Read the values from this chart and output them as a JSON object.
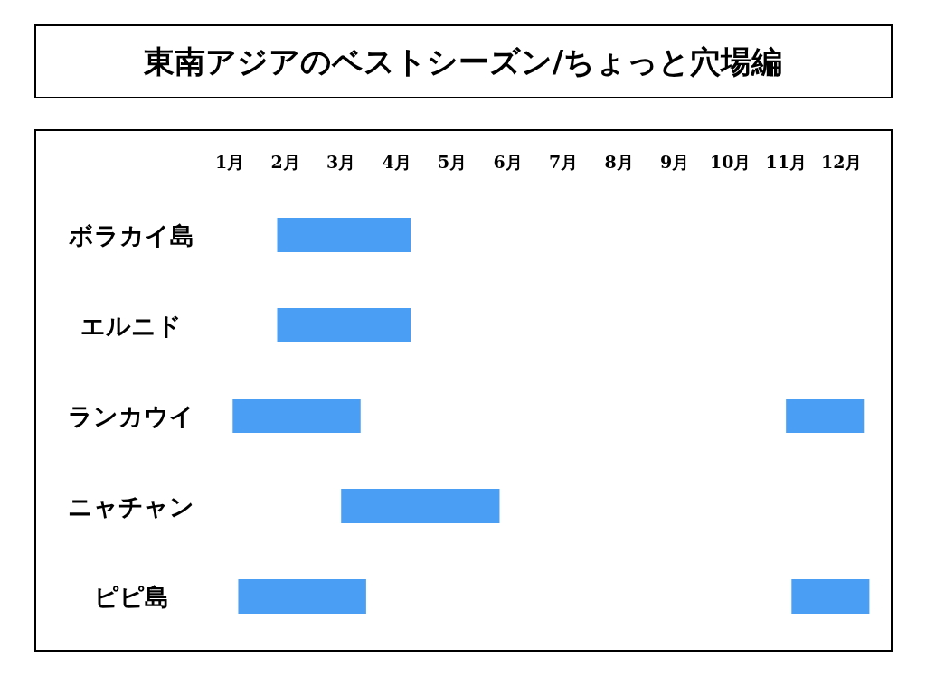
{
  "chart_data": {
    "type": "bar",
    "orientation": "horizontal",
    "title": "東南アジアのベストシーズン/ちょっと穴場編",
    "categories": [
      "ボラカイ島",
      "エルニド",
      "ランカウイ",
      "ニャチャン",
      "ピピ島"
    ],
    "series": [
      {
        "color": "#4a9ff5",
        "base": [
          1.85,
          1.85,
          1.05,
          3.0,
          1.15
        ],
        "values": [
          2.4,
          2.4,
          2.3,
          2.85,
          2.3
        ]
      },
      {
        "color": "#4a9ff5",
        "base": [
          null,
          null,
          11.0,
          null,
          11.1
        ],
        "values": [
          null,
          null,
          1.4,
          null,
          1.4
        ]
      }
    ],
    "xlim": [
      -2.5,
      12.9
    ],
    "xticks": [
      {
        "value": 1,
        "label": "1月"
      },
      {
        "value": 2,
        "label": "2月"
      },
      {
        "value": 3,
        "label": "3月"
      },
      {
        "value": 4,
        "label": "4月"
      },
      {
        "value": 5,
        "label": "5月"
      },
      {
        "value": 6,
        "label": "6月"
      },
      {
        "value": 7,
        "label": "7月"
      },
      {
        "value": 8,
        "label": "8月"
      },
      {
        "value": 9,
        "label": "9月"
      },
      {
        "value": 10,
        "label": "10月"
      },
      {
        "value": 11,
        "label": "11月"
      },
      {
        "value": 12,
        "label": "12月"
      }
    ]
  }
}
